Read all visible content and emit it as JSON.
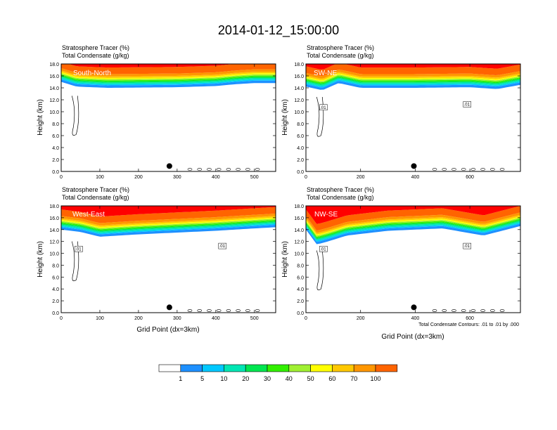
{
  "title": "2014-01-12_15:00:00",
  "panel_labels": {
    "line1": "Stratosphere Tracer   (%)",
    "line2": "Total Condensate   (g/kg)"
  },
  "ylabel": "Height (km)",
  "xlabel": "Grid Point (dx=3km)",
  "contour_note": "Total Condensate Contours: .01 to .01 by .000",
  "colorbar": {
    "levels": [
      "1",
      "5",
      "10",
      "20",
      "30",
      "40",
      "50",
      "60",
      "70",
      "100"
    ],
    "colors": [
      "#ffffff",
      "#1e90ff",
      "#00c8ff",
      "#00e6b4",
      "#00e650",
      "#32f000",
      "#a0f032",
      "#ffff00",
      "#ffc800",
      "#ff9600",
      "#ff6400",
      "#ff0000"
    ]
  },
  "chart_data": [
    {
      "type": "heatmap",
      "name": "South-North",
      "xlim": [
        0,
        555
      ],
      "ylim": [
        0,
        18
      ],
      "xticks": [
        0,
        100,
        200,
        300,
        400,
        500
      ],
      "yticks": [
        "0.0",
        "2.0",
        "4.0",
        "6.0",
        "8.0",
        "10.0",
        "12.0",
        "14.0",
        "16.0",
        "18.0"
      ],
      "marker_x": 280,
      "tropopause_km": {
        "x": [
          0,
          40,
          120,
          300,
          400,
          450,
          500,
          555
        ],
        "y": [
          15.0,
          14.2,
          14.0,
          14.1,
          14.3,
          14.6,
          14.8,
          14.8
        ]
      },
      "contour_labels": []
    },
    {
      "type": "heatmap",
      "name": "SW-NE",
      "xlim": [
        0,
        785
      ],
      "ylim": [
        0,
        18
      ],
      "xticks": [
        0,
        200,
        400,
        600
      ],
      "yticks": [
        "0.0",
        "2.0",
        "4.0",
        "6.0",
        "8.0",
        "10.0",
        "12.0",
        "14.0",
        "16.0",
        "18.0"
      ],
      "marker_x": 395,
      "tropopause_km": {
        "x": [
          0,
          60,
          120,
          200,
          400,
          600,
          700,
          785
        ],
        "y": [
          14.2,
          13.6,
          14.8,
          14.0,
          14.0,
          14.1,
          13.8,
          14.5
        ]
      },
      "contour_labels": [
        ".01",
        ".01"
      ]
    },
    {
      "type": "heatmap",
      "name": "West-East",
      "xlim": [
        0,
        555
      ],
      "ylim": [
        0,
        18
      ],
      "xticks": [
        0,
        100,
        200,
        300,
        400,
        500
      ],
      "yticks": [
        "0.0",
        "2.0",
        "4.0",
        "6.0",
        "8.0",
        "10.0",
        "12.0",
        "14.0",
        "16.0",
        "18.0"
      ],
      "marker_x": 280,
      "tropopause_km": {
        "x": [
          0,
          50,
          100,
          200,
          300,
          400,
          500,
          555
        ],
        "y": [
          14.0,
          13.6,
          12.8,
          13.2,
          13.5,
          13.8,
          14.2,
          14.4
        ]
      },
      "contour_labels": [
        ".01",
        ".01"
      ]
    },
    {
      "type": "heatmap",
      "name": "NW-SE",
      "xlim": [
        0,
        785
      ],
      "ylim": [
        0,
        18
      ],
      "xticks": [
        0,
        200,
        400,
        600
      ],
      "yticks": [
        "0.0",
        "2.0",
        "4.0",
        "6.0",
        "8.0",
        "10.0",
        "12.0",
        "14.0",
        "16.0",
        "18.0"
      ],
      "marker_x": 395,
      "tropopause_km": {
        "x": [
          0,
          40,
          80,
          150,
          300,
          500,
          650,
          785
        ],
        "y": [
          14.0,
          11.5,
          12.0,
          13.0,
          13.8,
          14.2,
          13.0,
          14.6
        ]
      },
      "contour_labels": [
        ".01",
        ".01"
      ]
    }
  ]
}
